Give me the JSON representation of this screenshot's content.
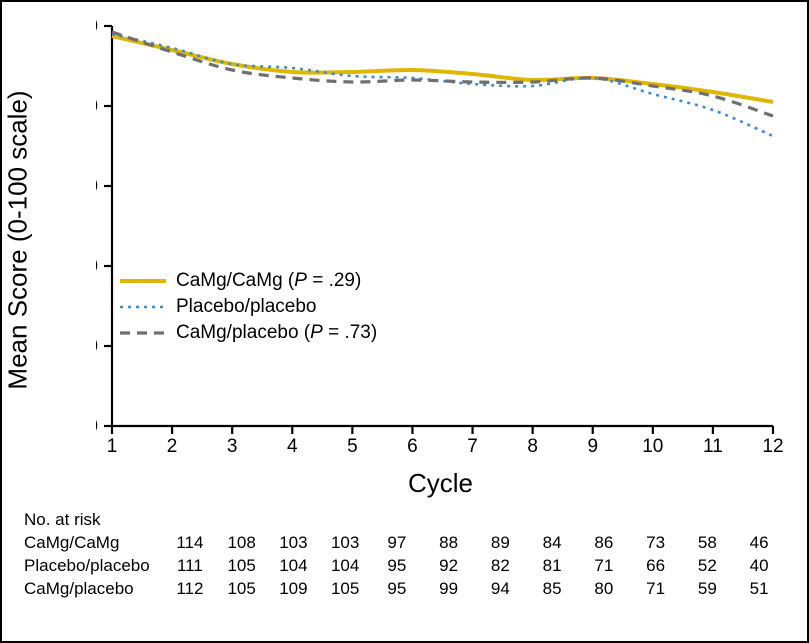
{
  "chart": {
    "type": "line",
    "ylabel": "Mean Score (0-100 scale)",
    "xlabel": "Cycle",
    "background_color": "#ffffff",
    "axis_color": "#000000",
    "axis_linewidth": 2.2,
    "tick_len": 8,
    "tick_fontsize": 19,
    "label_fontsize": 26,
    "xlim": [
      1,
      12
    ],
    "ylim": [
      0,
      100
    ],
    "xticks": [
      1,
      2,
      3,
      4,
      5,
      6,
      7,
      8,
      9,
      10,
      11,
      12
    ],
    "yticks": [
      0,
      20,
      40,
      60,
      80,
      100
    ],
    "series": [
      {
        "key": "camg_camg",
        "label_parts": [
          "CaMg/CaMg (",
          "P",
          " = .29)"
        ],
        "color": "#e0b700",
        "linewidth": 4.0,
        "dash": "",
        "y": [
          97.5,
          94.0,
          90.5,
          88.5,
          88.5,
          89.0,
          88.0,
          86.5,
          87.0,
          85.5,
          83.5,
          81.0
        ]
      },
      {
        "key": "placebo_placebo",
        "label_parts": [
          "Placebo/placebo"
        ],
        "color": "#3d8bd4",
        "linewidth": 2.6,
        "dash": "3 5",
        "y": [
          98.0,
          94.5,
          90.5,
          89.5,
          87.5,
          87.0,
          85.5,
          85.0,
          87.0,
          83.0,
          79.0,
          72.5
        ]
      },
      {
        "key": "camg_placebo",
        "label_parts": [
          "CaMg/placebo (",
          "P",
          " = .73)"
        ],
        "color": "#6f6f6f",
        "linewidth": 3.2,
        "dash": "10 7",
        "y": [
          98.5,
          93.5,
          89.0,
          87.0,
          86.0,
          86.5,
          86.0,
          86.0,
          87.0,
          85.0,
          82.5,
          77.5
        ]
      }
    ]
  },
  "risk_table": {
    "header": "No. at risk",
    "rows": [
      {
        "label": "CaMg/CaMg",
        "values": [
          114,
          108,
          103,
          103,
          97,
          88,
          89,
          84,
          86,
          73,
          58,
          46
        ]
      },
      {
        "label": "Placebo/placebo",
        "values": [
          111,
          105,
          104,
          104,
          95,
          92,
          82,
          81,
          71,
          66,
          52,
          40
        ]
      },
      {
        "label": "CaMg/placebo",
        "values": [
          112,
          105,
          109,
          105,
          95,
          99,
          94,
          85,
          80,
          71,
          59,
          51
        ]
      }
    ]
  }
}
